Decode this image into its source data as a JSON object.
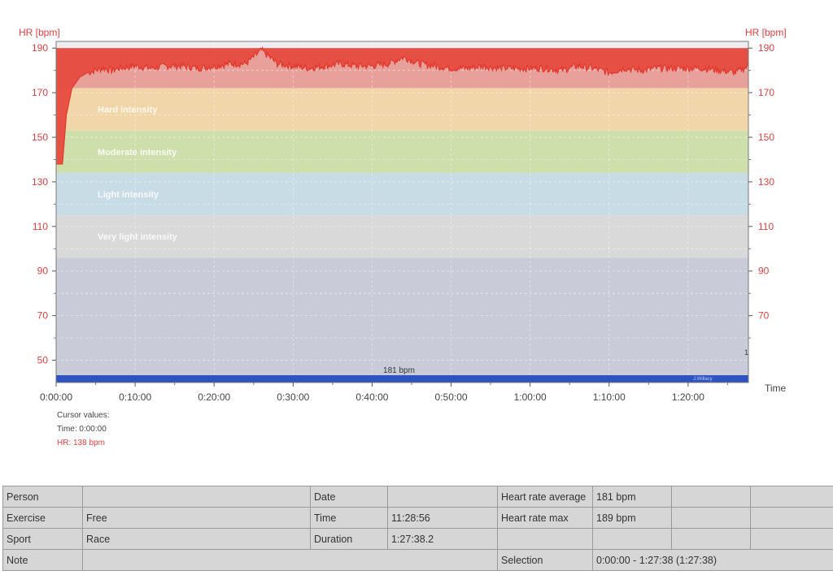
{
  "chart_data": {
    "type": "line",
    "title": "",
    "ylabel_left": "HR [bpm]",
    "ylabel_right": "HR [bpm]",
    "xlabel": "Time",
    "ylim": [
      40,
      193
    ],
    "yticks": [
      190,
      170,
      150,
      130,
      110,
      90,
      70,
      50
    ],
    "xlim_seconds": [
      0,
      5258
    ],
    "xticks": [
      "0:00:00",
      "0:10:00",
      "0:20:00",
      "0:30:00",
      "0:40:00",
      "0:50:00",
      "1:00:00",
      "1:10:00",
      "1:20:00"
    ],
    "zones": [
      {
        "name": "",
        "from": 172,
        "to": 190,
        "color": "#e8a09a"
      },
      {
        "name": "Hard intensity",
        "from": 153,
        "to": 172,
        "color": "#f1d6a9"
      },
      {
        "name": "Moderate intensity",
        "from": 134,
        "to": 153,
        "color": "#cfdfac"
      },
      {
        "name": "Light intensity",
        "from": 115,
        "to": 134,
        "color": "#c8dce5"
      },
      {
        "name": "Very light intensity",
        "from": 96,
        "to": 115,
        "color": "#d9d9d9"
      },
      {
        "name": "",
        "from": 40,
        "to": 96,
        "color": "#c9ccd8"
      }
    ],
    "top_zone_color": "#e64b3f",
    "series": [
      {
        "color": "#e3352b",
        "x_minutes": [
          0,
          0.4,
          0.8,
          1.3,
          2,
          3,
          4,
          5,
          6,
          7,
          8,
          10,
          12,
          14,
          16,
          18,
          20,
          22,
          24,
          25,
          26,
          27,
          28,
          30,
          32,
          34,
          36,
          38,
          40,
          42,
          44,
          46,
          48,
          50,
          52,
          54,
          56,
          58,
          60,
          62,
          64,
          66,
          68,
          70,
          72,
          74,
          76,
          78,
          80,
          82,
          84,
          86,
          87.63
        ],
        "values": [
          138,
          138,
          138,
          160,
          172,
          177,
          179,
          180,
          181,
          180,
          181,
          182,
          181,
          182,
          182,
          181,
          182,
          183,
          183,
          186,
          189,
          186,
          183,
          182,
          181,
          182,
          183,
          182,
          182,
          183,
          186,
          183,
          182,
          181,
          181,
          182,
          181,
          181,
          181,
          181,
          180,
          182,
          181,
          179,
          181,
          180,
          181,
          181,
          181,
          181,
          180,
          179,
          182
        ]
      }
    ],
    "average_bar": {
      "label": "181 bpm",
      "color": "#2d52c2"
    },
    "bar_end_label": "1",
    "watermark": "J.Willacy"
  },
  "cursor": {
    "title": "Cursor values:",
    "time": "Time: 0:00:00",
    "hr": "HR: 138 bpm"
  },
  "summary": {
    "rows": [
      [
        "Person",
        "",
        "Date",
        "",
        "Heart rate average",
        "181 bpm",
        "",
        ""
      ],
      [
        "Exercise",
        "Free",
        "Time",
        "11:28:56",
        "Heart rate max",
        "189 bpm",
        "",
        ""
      ],
      [
        "Sport",
        "Race",
        "Duration",
        "1:27:38.2",
        "",
        "",
        "",
        ""
      ]
    ],
    "note_label": "Note",
    "selection_label": "Selection",
    "selection_value": "0:00:00 - 1:27:38 (1:27:38)"
  }
}
